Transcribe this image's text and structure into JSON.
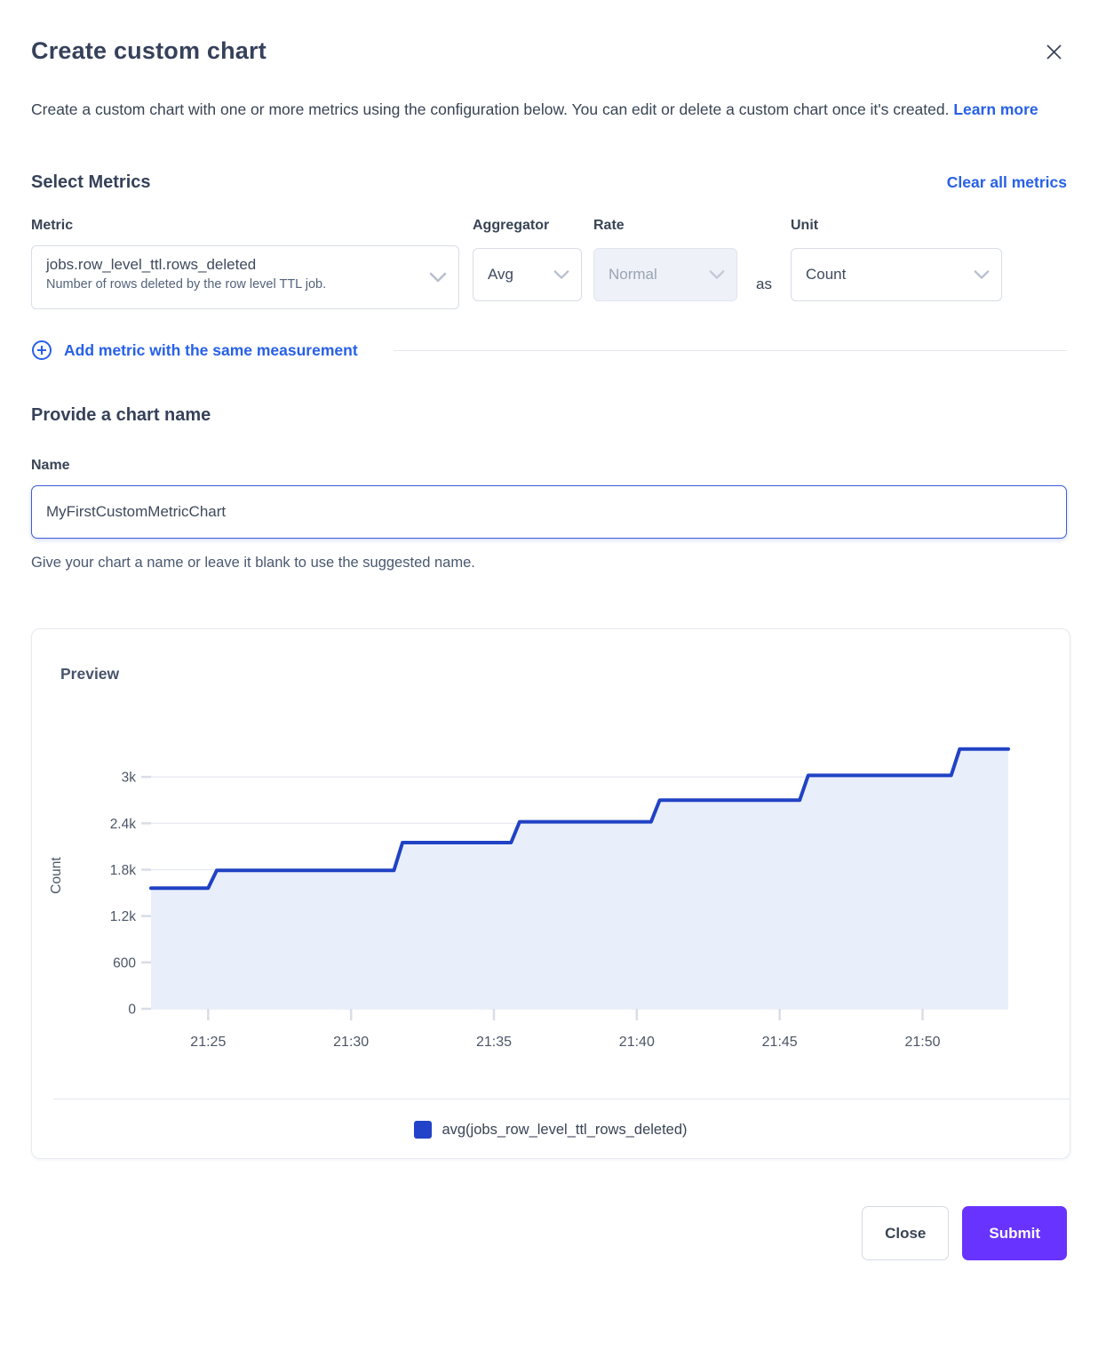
{
  "modal": {
    "title": "Create custom chart",
    "description": "Create a custom chart with one or more metrics using the configuration below. You can edit or delete a custom chart once it's created.",
    "learn_more_label": "Learn more"
  },
  "metrics": {
    "heading": "Select Metrics",
    "clear_all_label": "Clear all metrics",
    "labels": {
      "metric": "Metric",
      "aggregator": "Aggregator",
      "rate": "Rate",
      "unit": "Unit"
    },
    "row": {
      "metric_value": "jobs.row_level_ttl.rows_deleted",
      "metric_description": "Number of rows deleted by the row level TTL job.",
      "aggregator_value": "Avg",
      "rate_value": "Normal",
      "rate_disabled": "true",
      "as_label": "as",
      "unit_value": "Count"
    },
    "add_metric_label": "Add metric with the same measurement"
  },
  "name_section": {
    "heading": "Provide a chart name",
    "label": "Name",
    "value": "MyFirstCustomMetricChart",
    "helper": "Give your chart a name or leave it blank to use the suggested name."
  },
  "preview": {
    "heading": "Preview"
  },
  "footer": {
    "close_label": "Close",
    "submit_label": "Submit"
  },
  "colors": {
    "accent_link": "#2760e8",
    "submit_bg": "#6933ff",
    "line": "#2042c4",
    "area_fill": "#e9eefb",
    "legend_swatch": "#2243c9",
    "grid": "#e4e7ef",
    "tick": "#d9dde6",
    "axis_text": "#4c5666",
    "focus_border": "#3c5dd6"
  },
  "chart_data": {
    "type": "area",
    "title": "Preview",
    "xlabel": "",
    "ylabel": "Count",
    "grid": "on",
    "legend_position": "bottom",
    "xlim_minutes": [
      23,
      53
    ],
    "ylim": [
      0,
      3450
    ],
    "x_ticks": [
      {
        "t": 25,
        "label": "21:25"
      },
      {
        "t": 30,
        "label": "21:30"
      },
      {
        "t": 35,
        "label": "21:35"
      },
      {
        "t": 40,
        "label": "21:40"
      },
      {
        "t": 45,
        "label": "21:45"
      },
      {
        "t": 50,
        "label": "21:50"
      }
    ],
    "y_ticks": [
      0,
      600,
      1200,
      1800,
      2400,
      3000
    ],
    "y_tick_labels": [
      "0",
      "600",
      "1.2k",
      "1.8k",
      "2.4k",
      "3k"
    ],
    "series": [
      {
        "name": "avg(jobs_row_level_ttl_rows_deleted)",
        "points": [
          [
            23.0,
            1560
          ],
          [
            25.0,
            1560
          ],
          [
            25.3,
            1790
          ],
          [
            31.5,
            1790
          ],
          [
            31.8,
            2150
          ],
          [
            35.6,
            2150
          ],
          [
            35.9,
            2420
          ],
          [
            40.5,
            2420
          ],
          [
            40.8,
            2700
          ],
          [
            45.7,
            2700
          ],
          [
            46.0,
            3020
          ],
          [
            51.0,
            3020
          ],
          [
            51.3,
            3360
          ],
          [
            53.0,
            3360
          ]
        ]
      }
    ]
  }
}
